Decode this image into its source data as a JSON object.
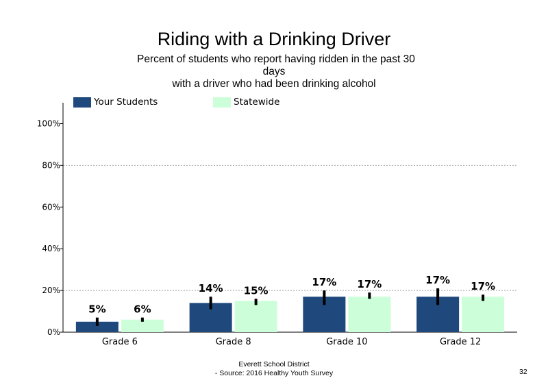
{
  "chart_data": {
    "type": "bar",
    "title": "Riding with a Drinking Driver",
    "subtitle_lines": [
      "Percent of students who report having ridden in the past 30",
      "days",
      "with a driver who had been drinking alcohol"
    ],
    "categories": [
      "Grade 6",
      "Grade 8",
      "Grade 10",
      "Grade 12"
    ],
    "series": [
      {
        "name": "Your Students",
        "color": "#1f497d",
        "values": [
          5,
          14,
          17,
          17
        ],
        "labels": [
          "5%",
          "14%",
          "17%",
          "17%"
        ],
        "error_low": [
          3,
          11,
          13,
          13
        ],
        "error_high": [
          7,
          17,
          20,
          21
        ]
      },
      {
        "name": "Statewide",
        "color": "#ccffd9",
        "values": [
          6,
          15,
          17,
          17
        ],
        "labels": [
          "6%",
          "15%",
          "17%",
          "17%"
        ],
        "error_low": [
          5,
          13,
          16,
          15
        ],
        "error_high": [
          7,
          16,
          19,
          18
        ]
      }
    ],
    "ylim": [
      0,
      110
    ],
    "yticks": [
      0,
      20,
      40,
      60,
      80,
      100
    ],
    "ytick_labels": [
      "0%",
      "20%",
      "40%",
      "60%",
      "80%",
      "100%"
    ],
    "gridlines": [
      20,
      80
    ],
    "legend": "top-left"
  },
  "footer": {
    "line1": "Everett School District",
    "line2": "- Source: 2016 Healthy  Youth Survey"
  },
  "page_number": "32"
}
